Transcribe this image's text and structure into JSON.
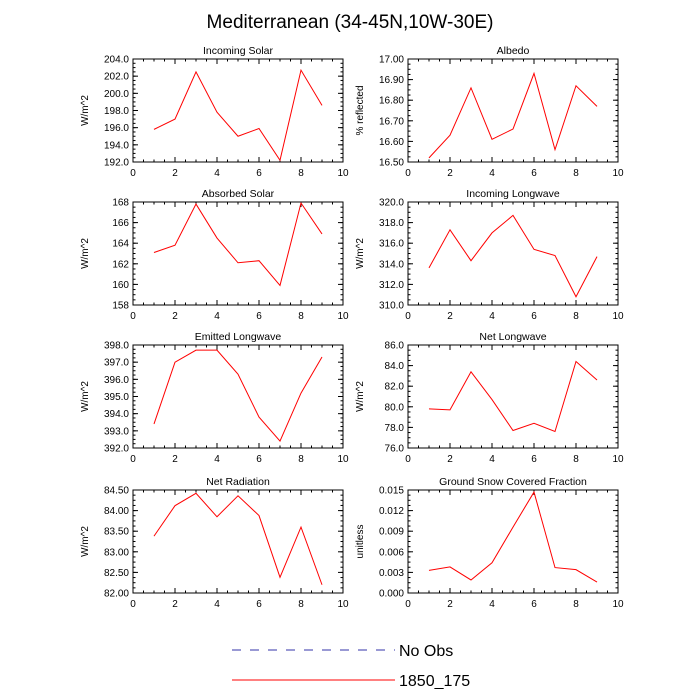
{
  "title": "Mediterranean (34-45N,10W-30E)",
  "colors": {
    "model": "#ff0000",
    "obs": "#3333aa",
    "axis": "#000000"
  },
  "legend": [
    {
      "label": "No Obs",
      "style": "dashed",
      "color": "#3333aa"
    },
    {
      "label": "1850_175",
      "style": "solid",
      "color": "#ff0000"
    }
  ],
  "chart_data": [
    {
      "type": "line",
      "title": "Incoming Solar",
      "ylabel": "W/m^2",
      "x": [
        1,
        2,
        3,
        4,
        5,
        6,
        7,
        8,
        9
      ],
      "xlim": [
        0,
        10
      ],
      "xticks": [
        "0",
        "2",
        "4",
        "6",
        "8",
        "10"
      ],
      "ylim": [
        192,
        204
      ],
      "yticks": [
        "192.0",
        "194.0",
        "196.0",
        "198.0",
        "200.0",
        "202.0",
        "204.0"
      ],
      "series": [
        {
          "name": "1850_175",
          "values": [
            195.8,
            197.0,
            202.5,
            197.8,
            195.0,
            195.9,
            192.2,
            202.7,
            198.6
          ]
        }
      ]
    },
    {
      "type": "line",
      "title": "Albedo",
      "ylabel": "% reflected",
      "x": [
        1,
        2,
        3,
        4,
        5,
        6,
        7,
        8,
        9
      ],
      "xlim": [
        0,
        10
      ],
      "xticks": [
        "0",
        "2",
        "4",
        "6",
        "8",
        "10"
      ],
      "ylim": [
        16.5,
        17.0
      ],
      "yticks": [
        "16.50",
        "16.60",
        "16.70",
        "16.80",
        "16.90",
        "17.00"
      ],
      "series": [
        {
          "name": "1850_175",
          "values": [
            16.52,
            16.63,
            16.86,
            16.61,
            16.66,
            16.93,
            16.56,
            16.87,
            16.77
          ]
        }
      ]
    },
    {
      "type": "line",
      "title": "Absorbed Solar",
      "ylabel": "W/m^2",
      "x": [
        1,
        2,
        3,
        4,
        5,
        6,
        7,
        8,
        9
      ],
      "xlim": [
        0,
        10
      ],
      "xticks": [
        "0",
        "2",
        "4",
        "6",
        "8",
        "10"
      ],
      "ylim": [
        158,
        168
      ],
      "yticks": [
        "158",
        "160",
        "162",
        "164",
        "166",
        "168"
      ],
      "series": [
        {
          "name": "1850_175",
          "values": [
            163.1,
            163.8,
            167.8,
            164.5,
            162.1,
            162.3,
            159.9,
            167.9,
            164.9
          ]
        }
      ]
    },
    {
      "type": "line",
      "title": "Incoming Longwave",
      "ylabel": "W/m^2",
      "x": [
        1,
        2,
        3,
        4,
        5,
        6,
        7,
        8,
        9
      ],
      "xlim": [
        0,
        10
      ],
      "xticks": [
        "0",
        "2",
        "4",
        "6",
        "8",
        "10"
      ],
      "ylim": [
        310,
        320
      ],
      "yticks": [
        "310.0",
        "312.0",
        "314.0",
        "316.0",
        "318.0",
        "320.0"
      ],
      "series": [
        {
          "name": "1850_175",
          "values": [
            313.6,
            317.3,
            314.3,
            317.0,
            318.7,
            315.4,
            314.8,
            310.8,
            314.7
          ]
        }
      ]
    },
    {
      "type": "line",
      "title": "Emitted Longwave",
      "ylabel": "W/m^2",
      "x": [
        1,
        2,
        3,
        4,
        5,
        6,
        7,
        8,
        9
      ],
      "xlim": [
        0,
        10
      ],
      "xticks": [
        "0",
        "2",
        "4",
        "6",
        "8",
        "10"
      ],
      "ylim": [
        392,
        398
      ],
      "yticks": [
        "392.0",
        "393.0",
        "394.0",
        "395.0",
        "396.0",
        "397.0",
        "398.0"
      ],
      "series": [
        {
          "name": "1850_175",
          "values": [
            393.4,
            397.0,
            397.7,
            397.7,
            396.3,
            393.8,
            392.4,
            395.2,
            397.3
          ]
        }
      ]
    },
    {
      "type": "line",
      "title": "Net Longwave",
      "ylabel": "W/m^2",
      "x": [
        1,
        2,
        3,
        4,
        5,
        6,
        7,
        8,
        9
      ],
      "xlim": [
        0,
        10
      ],
      "xticks": [
        "0",
        "2",
        "4",
        "6",
        "8",
        "10"
      ],
      "ylim": [
        76,
        86
      ],
      "yticks": [
        "76.0",
        "78.0",
        "80.0",
        "82.0",
        "84.0",
        "86.0"
      ],
      "series": [
        {
          "name": "1850_175",
          "values": [
            79.8,
            79.7,
            83.4,
            80.7,
            77.7,
            78.4,
            77.6,
            84.4,
            82.6
          ]
        }
      ]
    },
    {
      "type": "line",
      "title": "Net Radiation",
      "ylabel": "W/m^2",
      "x": [
        1,
        2,
        3,
        4,
        5,
        6,
        7,
        8,
        9
      ],
      "xlim": [
        0,
        10
      ],
      "xticks": [
        "0",
        "2",
        "4",
        "6",
        "8",
        "10"
      ],
      "ylim": [
        82,
        84.5
      ],
      "yticks": [
        "82.00",
        "82.50",
        "83.00",
        "83.50",
        "84.00",
        "84.50"
      ],
      "series": [
        {
          "name": "1850_175",
          "values": [
            83.38,
            84.12,
            84.42,
            83.85,
            84.36,
            83.88,
            82.38,
            83.6,
            82.2
          ]
        }
      ]
    },
    {
      "type": "line",
      "title": "Ground Snow Covered Fraction",
      "ylabel": "unitless",
      "x": [
        1,
        2,
        3,
        4,
        5,
        6,
        7,
        8,
        9
      ],
      "xlim": [
        0,
        10
      ],
      "xticks": [
        "0",
        "2",
        "4",
        "6",
        "8",
        "10"
      ],
      "ylim": [
        0,
        0.015
      ],
      "yticks": [
        "0.000",
        "0.003",
        "0.006",
        "0.009",
        "0.012",
        "0.015"
      ],
      "series": [
        {
          "name": "1850_175",
          "values": [
            0.0033,
            0.0038,
            0.0019,
            0.0044,
            0.0096,
            0.0147,
            0.0037,
            0.0034,
            0.0016
          ]
        }
      ]
    }
  ]
}
